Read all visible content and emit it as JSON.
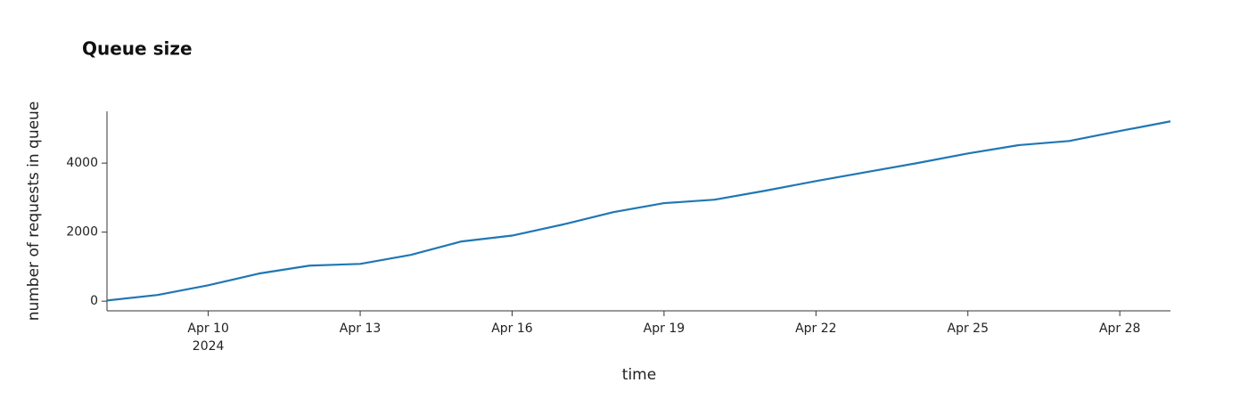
{
  "chart_data": {
    "type": "line",
    "title": "Queue size",
    "x_label": "time",
    "y_label": "number of requests in queue",
    "x": [
      "2024-04-08",
      "2024-04-09",
      "2024-04-10",
      "2024-04-11",
      "2024-04-12",
      "2024-04-13",
      "2024-04-14",
      "2024-04-15",
      "2024-04-16",
      "2024-04-17",
      "2024-04-18",
      "2024-04-19",
      "2024-04-20",
      "2024-04-21",
      "2024-04-22",
      "2024-04-23",
      "2024-04-24",
      "2024-04-25",
      "2024-04-26",
      "2024-04-27",
      "2024-04-28",
      "2024-04-29"
    ],
    "series": [
      {
        "name": "queue size",
        "color": "#1f77b4",
        "values": [
          20,
          180,
          460,
          800,
          1030,
          1080,
          1340,
          1730,
          1900,
          2220,
          2580,
          2840,
          2940,
          3200,
          3480,
          3740,
          4000,
          4280,
          4520,
          4640,
          4930,
          5210
        ]
      }
    ],
    "xlim": [
      "2024-04-08",
      "2024-04-29"
    ],
    "xticks": [
      {
        "value": "2024-04-10",
        "label": "Apr 10"
      },
      {
        "value": "2024-04-13",
        "label": "Apr 13"
      },
      {
        "value": "2024-04-16",
        "label": "Apr 16"
      },
      {
        "value": "2024-04-19",
        "label": "Apr 19"
      },
      {
        "value": "2024-04-22",
        "label": "Apr 22"
      },
      {
        "value": "2024-04-25",
        "label": "Apr 25"
      },
      {
        "value": "2024-04-28",
        "label": "Apr 28"
      }
    ],
    "xtick_year": "2024",
    "ylim": [
      -280,
      5500
    ],
    "yticks": [
      0,
      2000,
      4000
    ]
  }
}
